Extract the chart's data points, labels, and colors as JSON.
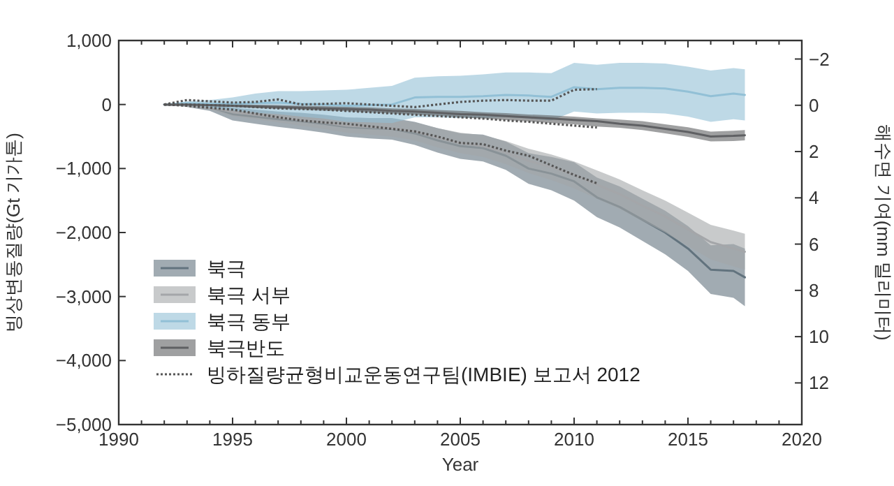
{
  "chart_data": {
    "type": "line",
    "xlabel": "Year",
    "ylabel": "빙상변동질량(Gt 기가톤)",
    "y2label": "해수면 기여(mm 밀리미터)",
    "xlim": [
      1990,
      2020
    ],
    "ylim": [
      -5000,
      1000
    ],
    "y2lim": [
      13.8,
      -2.8
    ],
    "xticks": [
      1990,
      {
        "value": 1991,
        "label": null
      },
      {
        "value": 1992,
        "label": null
      },
      {
        "value": 1993,
        "label": null
      },
      {
        "value": 1994,
        "label": null
      },
      1995,
      {
        "value": 1996,
        "label": null
      },
      {
        "value": 1997,
        "label": null
      },
      {
        "value": 1998,
        "label": null
      },
      {
        "value": 1999,
        "label": null
      },
      2000,
      {
        "value": 2001,
        "label": null
      },
      {
        "value": 2002,
        "label": null
      },
      {
        "value": 2003,
        "label": null
      },
      {
        "value": 2004,
        "label": null
      },
      2005,
      {
        "value": 2006,
        "label": null
      },
      {
        "value": 2007,
        "label": null
      },
      {
        "value": 2008,
        "label": null
      },
      {
        "value": 2009,
        "label": null
      },
      2010,
      {
        "value": 2011,
        "label": null
      },
      {
        "value": 2012,
        "label": null
      },
      {
        "value": 2013,
        "label": null
      },
      {
        "value": 2014,
        "label": null
      },
      2015,
      {
        "value": 2016,
        "label": null
      },
      {
        "value": 2017,
        "label": null
      },
      {
        "value": 2018,
        "label": null
      },
      {
        "value": 2019,
        "label": null
      },
      2020
    ],
    "yticks": [
      {
        "value": 1000,
        "label": "1,000"
      },
      0,
      {
        "value": -1000,
        "label": "−1,000"
      },
      {
        "value": -2000,
        "label": "−2,000"
      },
      {
        "value": -3000,
        "label": "−3,000"
      },
      {
        "value": -4000,
        "label": "−4,000"
      },
      {
        "value": -5000,
        "label": "−5,000"
      }
    ],
    "y2ticks": [
      {
        "value": -2,
        "label": "−2"
      },
      0,
      2,
      4,
      6,
      8,
      10,
      12
    ],
    "legend": "bottom left",
    "series": [
      {
        "name": "북극",
        "color": "#62737e",
        "x": [
          1992,
          1993,
          1994,
          1995,
          1996,
          1997,
          1998,
          1999,
          2000,
          2001,
          2002,
          2003,
          2004,
          2005,
          2006,
          2007,
          2008,
          2009,
          2010,
          2011,
          2012,
          2013,
          2014,
          2015,
          2016,
          2017,
          2017.5
        ],
        "values": [
          0,
          -10,
          -40,
          -150,
          -190,
          -230,
          -260,
          -300,
          -350,
          -370,
          -380,
          -450,
          -560,
          -650,
          -680,
          -800,
          -1000,
          -1080,
          -1200,
          -1450,
          -1600,
          -1800,
          -2000,
          -2250,
          -2580,
          -2600,
          -2700
        ],
        "lower": [
          0,
          -40,
          -100,
          -250,
          -300,
          -350,
          -390,
          -440,
          -500,
          -530,
          -550,
          -630,
          -750,
          -850,
          -890,
          -1020,
          -1240,
          -1340,
          -1500,
          -1760,
          -1920,
          -2130,
          -2340,
          -2600,
          -2960,
          -3020,
          -3150
        ],
        "upper": [
          0,
          20,
          20,
          -50,
          -80,
          -110,
          -130,
          -160,
          -200,
          -210,
          -210,
          -270,
          -370,
          -450,
          -470,
          -580,
          -760,
          -820,
          -900,
          -1140,
          -1280,
          -1470,
          -1660,
          -1900,
          -2200,
          -2180,
          -2250
        ]
      },
      {
        "name": "북극 서부",
        "color": "#a4a6a9",
        "x": [
          1992,
          1993,
          1994,
          1995,
          1996,
          1997,
          1998,
          1999,
          2000,
          2001,
          2002,
          2003,
          2004,
          2005,
          2006,
          2007,
          2008,
          2009,
          2010,
          2011,
          2012,
          2013,
          2014,
          2015,
          2016,
          2017,
          2017.5
        ],
        "values": [
          0,
          -10,
          -40,
          -120,
          -160,
          -200,
          -240,
          -280,
          -330,
          -350,
          -370,
          -420,
          -520,
          -600,
          -650,
          -750,
          -880,
          -980,
          -1100,
          -1250,
          -1400,
          -1580,
          -1750,
          -1950,
          -2150,
          -2250,
          -2300
        ],
        "lower": [
          0,
          -30,
          -80,
          -180,
          -230,
          -280,
          -330,
          -380,
          -440,
          -470,
          -500,
          -560,
          -670,
          -760,
          -820,
          -930,
          -1070,
          -1180,
          -1310,
          -1470,
          -1630,
          -1820,
          -2000,
          -2210,
          -2420,
          -2530,
          -2580
        ],
        "upper": [
          0,
          10,
          0,
          -60,
          -90,
          -120,
          -150,
          -180,
          -220,
          -230,
          -240,
          -280,
          -370,
          -440,
          -480,
          -570,
          -690,
          -780,
          -890,
          -1030,
          -1170,
          -1340,
          -1500,
          -1690,
          -1880,
          -1970,
          -2020
        ]
      },
      {
        "name": "북극 동부",
        "color": "#92c0d6",
        "x": [
          1992,
          1993,
          1994,
          1995,
          1996,
          1997,
          1998,
          1999,
          2000,
          2001,
          2002,
          2003,
          2004,
          2005,
          2006,
          2007,
          2008,
          2009,
          2010,
          2011,
          2012,
          2013,
          2014,
          2015,
          2016,
          2017,
          2017.5
        ],
        "values": [
          0,
          20,
          10,
          10,
          20,
          30,
          10,
          0,
          -20,
          -10,
          0,
          110,
          120,
          120,
          130,
          150,
          140,
          120,
          270,
          240,
          260,
          260,
          250,
          200,
          130,
          170,
          150
        ],
        "lower": [
          0,
          -10,
          -50,
          -90,
          -130,
          -150,
          -190,
          -220,
          -270,
          -280,
          -290,
          -200,
          -200,
          -210,
          -210,
          -200,
          -220,
          -250,
          -110,
          -140,
          -130,
          -130,
          -140,
          -190,
          -270,
          -230,
          -250
        ],
        "upper": [
          0,
          50,
          70,
          110,
          170,
          210,
          210,
          220,
          230,
          260,
          290,
          420,
          440,
          450,
          470,
          500,
          500,
          490,
          650,
          620,
          650,
          650,
          640,
          590,
          530,
          570,
          550
        ]
      },
      {
        "name": "북극반도",
        "color": "#5f6063",
        "x": [
          1992,
          1993,
          1994,
          1995,
          1996,
          1997,
          1998,
          1999,
          2000,
          2001,
          2002,
          2003,
          2004,
          2005,
          2006,
          2007,
          2008,
          2009,
          2010,
          2011,
          2012,
          2013,
          2014,
          2015,
          2016,
          2017,
          2017.5
        ],
        "values": [
          0,
          0,
          -10,
          -20,
          -30,
          -40,
          -50,
          -60,
          -70,
          -80,
          -100,
          -110,
          -130,
          -150,
          -160,
          -180,
          -200,
          -220,
          -240,
          -260,
          -300,
          -330,
          -380,
          -430,
          -500,
          -490,
          -480
        ],
        "lower": [
          0,
          -15,
          -25,
          -40,
          -55,
          -70,
          -80,
          -95,
          -105,
          -125,
          -140,
          -160,
          -175,
          -200,
          -220,
          -245,
          -265,
          -290,
          -310,
          -345,
          -365,
          -400,
          -450,
          -505,
          -575,
          -570,
          -560
        ],
        "upper": [
          0,
          5,
          5,
          0,
          -5,
          -10,
          -20,
          -25,
          -35,
          -45,
          -60,
          -70,
          -85,
          -100,
          -120,
          -135,
          -155,
          -170,
          -190,
          -215,
          -235,
          -260,
          -310,
          -355,
          -425,
          -410,
          -400
        ]
      },
      {
        "name": "빙하질량균형비교운동연구팀(IMBIE) 보고서 2012",
        "color": "#555555",
        "line_style": "dotted",
        "x": [
          1992,
          1993,
          1994,
          1995,
          1996,
          1997,
          1998,
          1999,
          2000,
          2001,
          2002,
          2003,
          2004,
          2005,
          2006,
          2007,
          2008,
          2009,
          2010,
          2011
        ],
        "values": [
          0,
          70,
          50,
          30,
          40,
          80,
          0,
          10,
          20,
          0,
          -20,
          -40,
          0,
          40,
          60,
          70,
          60,
          60,
          230,
          240
        ]
      },
      {
        "color": "#555555",
        "line_style": "dotted",
        "x": [
          1992,
          1993,
          1994,
          1995,
          1996,
          1997,
          1998,
          1999,
          2000,
          2001,
          2002,
          2003,
          2004,
          2005,
          2006,
          2007,
          2008,
          2009,
          2010,
          2011
        ],
        "values": [
          0,
          -20,
          -50,
          -80,
          -140,
          -200,
          -250,
          -280,
          -300,
          -340,
          -380,
          -420,
          -500,
          -600,
          -620,
          -720,
          -800,
          -950,
          -1100,
          -1230
        ]
      },
      {
        "color": "#555555",
        "line_style": "dotted",
        "x": [
          1992,
          1993,
          1994,
          1995,
          1996,
          1997,
          1998,
          1999,
          2000,
          2001,
          2002,
          2003,
          2004,
          2005,
          2006,
          2007,
          2008,
          2009,
          2010,
          2011
        ],
        "values": [
          0,
          0,
          -10,
          -20,
          -40,
          -60,
          -70,
          -80,
          -100,
          -120,
          -140,
          -160,
          -180,
          -200,
          -220,
          -250,
          -270,
          -300,
          -330,
          -360
        ]
      }
    ]
  }
}
